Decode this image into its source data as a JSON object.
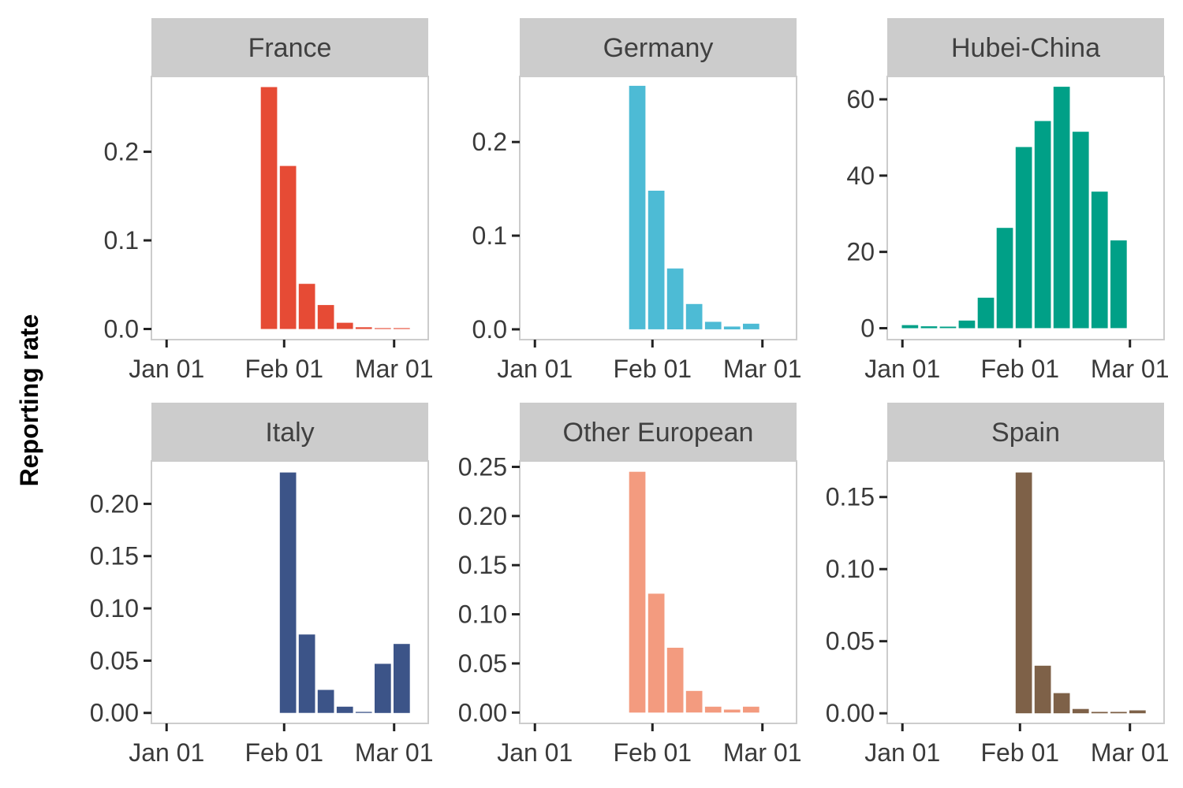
{
  "y_axis_label": "Reporting rate",
  "x_tick_labels": [
    "Jan 01",
    "Feb 01",
    "Mar 01"
  ],
  "chart_data": [
    {
      "type": "bar",
      "facet": "France",
      "color": "#E64B35",
      "x": [
        "Jan 28",
        "Feb 02",
        "Feb 07",
        "Feb 12",
        "Feb 17",
        "Feb 22",
        "Feb 27",
        "Mar 03"
      ],
      "values": [
        0.273,
        0.184,
        0.051,
        0.027,
        0.007,
        0.002,
        0.001,
        0.001
      ],
      "xlim": [
        "Dec 28",
        "Mar 10"
      ],
      "ylim": [
        -0.012,
        0.285
      ],
      "yticks": [
        0.0,
        0.1,
        0.2
      ],
      "ytick_labels": [
        "0.0",
        "0.1",
        "0.2"
      ]
    },
    {
      "type": "bar",
      "facet": "Germany",
      "color": "#4DBBD5",
      "x": [
        "Jan 28",
        "Feb 02",
        "Feb 07",
        "Feb 12",
        "Feb 17",
        "Feb 22",
        "Feb 27",
        "Mar 03"
      ],
      "values": [
        0.26,
        0.148,
        0.065,
        0.027,
        0.008,
        0.003,
        0.006,
        0.0
      ],
      "xlim": [
        "Dec 28",
        "Mar 10"
      ],
      "ylim": [
        -0.011,
        0.27
      ],
      "yticks": [
        0.0,
        0.1,
        0.2
      ],
      "ytick_labels": [
        "0.0",
        "0.1",
        "0.2"
      ]
    },
    {
      "type": "bar",
      "facet": "Hubei-China",
      "color": "#00A087",
      "x": [
        "Jan 03",
        "Jan 08",
        "Jan 13",
        "Jan 18",
        "Jan 23",
        "Jan 28",
        "Feb 02",
        "Feb 07",
        "Feb 12",
        "Feb 17",
        "Feb 22",
        "Feb 27"
      ],
      "values": [
        0.8,
        0.5,
        0.4,
        2.0,
        8.0,
        26.3,
        47.5,
        54.3,
        63.3,
        51.5,
        35.8,
        23.0
      ],
      "xlim": [
        "Dec 28",
        "Mar 10"
      ],
      "ylim": [
        -3,
        66
      ],
      "yticks": [
        0,
        20,
        40,
        60
      ],
      "ytick_labels": [
        "0",
        "20",
        "40",
        "60"
      ]
    },
    {
      "type": "bar",
      "facet": "Italy",
      "color": "#3C5488",
      "x": [
        "Feb 02",
        "Feb 07",
        "Feb 12",
        "Feb 17",
        "Feb 22",
        "Feb 27",
        "Mar 03"
      ],
      "values": [
        0.23,
        0.075,
        0.022,
        0.006,
        0.001,
        0.047,
        0.066
      ],
      "xlim": [
        "Dec 28",
        "Mar 10"
      ],
      "ylim": [
        -0.01,
        0.241
      ],
      "yticks": [
        0.0,
        0.05,
        0.1,
        0.15,
        0.2
      ],
      "ytick_labels": [
        "0.00",
        "0.05",
        "0.10",
        "0.15",
        "0.20"
      ]
    },
    {
      "type": "bar",
      "facet": "Other European",
      "color": "#F39B7F",
      "x": [
        "Jan 28",
        "Feb 02",
        "Feb 07",
        "Feb 12",
        "Feb 17",
        "Feb 22",
        "Feb 27",
        "Mar 03"
      ],
      "values": [
        0.245,
        0.121,
        0.066,
        0.022,
        0.006,
        0.003,
        0.006,
        0.0
      ],
      "xlim": [
        "Dec 28",
        "Mar 10"
      ],
      "ylim": [
        -0.011,
        0.256
      ],
      "yticks": [
        0.0,
        0.05,
        0.1,
        0.15,
        0.2,
        0.25
      ],
      "ytick_labels": [
        "0.00",
        "0.05",
        "0.10",
        "0.15",
        "0.20",
        "0.25"
      ]
    },
    {
      "type": "bar",
      "facet": "Spain",
      "color": "#7E6148",
      "x": [
        "Feb 02",
        "Feb 07",
        "Feb 12",
        "Feb 17",
        "Feb 22",
        "Feb 27",
        "Mar 03"
      ],
      "values": [
        0.167,
        0.033,
        0.014,
        0.003,
        0.001,
        0.001,
        0.002
      ],
      "xlim": [
        "Dec 28",
        "Mar 10"
      ],
      "ylim": [
        -0.007,
        0.175
      ],
      "yticks": [
        0.0,
        0.05,
        0.1,
        0.15
      ],
      "ytick_labels": [
        "0.00",
        "0.05",
        "0.10",
        "0.15"
      ]
    }
  ]
}
